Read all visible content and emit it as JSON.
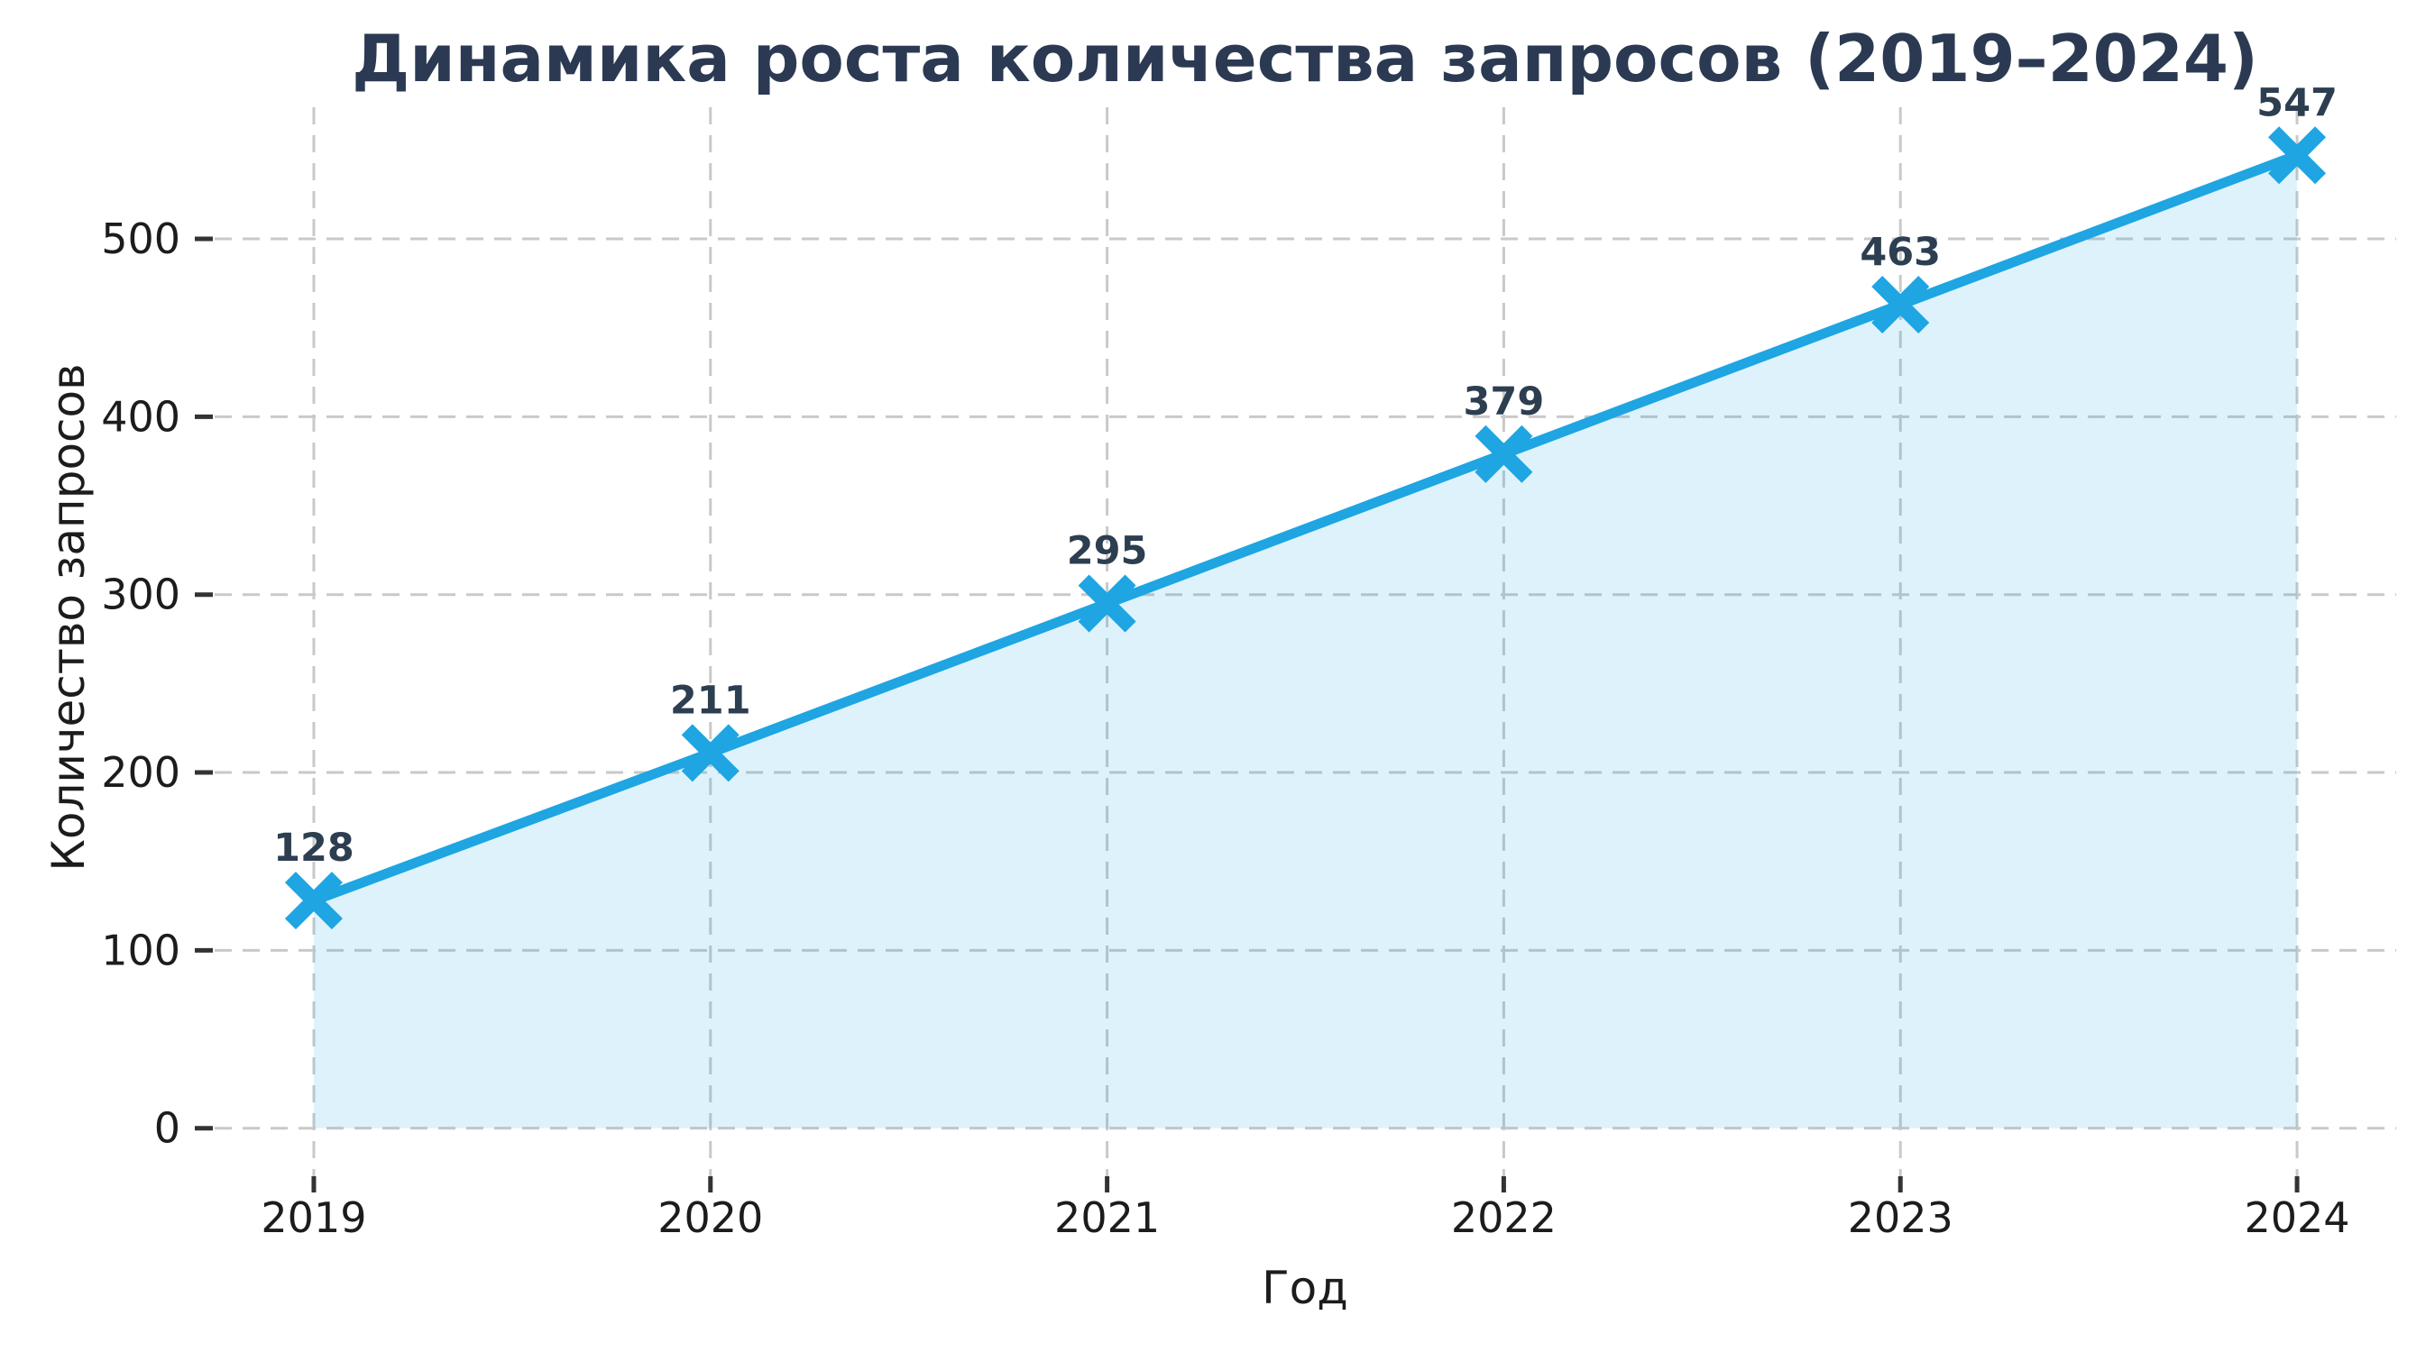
{
  "chart_data": {
    "type": "line",
    "title": "Динамика роста количества запросов (2019–2024)",
    "xlabel": "Год",
    "ylabel": "Количество запросов",
    "x": [
      2019,
      2020,
      2021,
      2022,
      2023,
      2024
    ],
    "series": [
      {
        "name": "Количество запросов",
        "values": [
          128,
          211,
          295,
          379,
          463,
          547
        ]
      }
    ],
    "data_point_labels": [
      "128",
      "211",
      "295",
      "379",
      "463",
      "547"
    ],
    "yticks": [
      0,
      100,
      200,
      300,
      400,
      500
    ],
    "xtick_labels": [
      "2019",
      "2020",
      "2021",
      "2022",
      "2023",
      "2024"
    ],
    "xlim": [
      2018.75,
      2024.25
    ],
    "ylim": [
      -27,
      574
    ],
    "grid": "dashed",
    "legend": "none",
    "marker": "X",
    "area_under_line": true,
    "colors": {
      "line": "#1ea5e2",
      "marker": "#1ea5e2",
      "area_fill": "#1ea5e2",
      "area_opacity": "0.15",
      "title": "#2b3a52",
      "data_label": "#2c3e50",
      "tick_label": "#1c1c1c",
      "axis_label": "#1c1c1c",
      "grid": "#c9c9c9",
      "tick_mark": "#333333",
      "background": "#ffffff"
    }
  }
}
